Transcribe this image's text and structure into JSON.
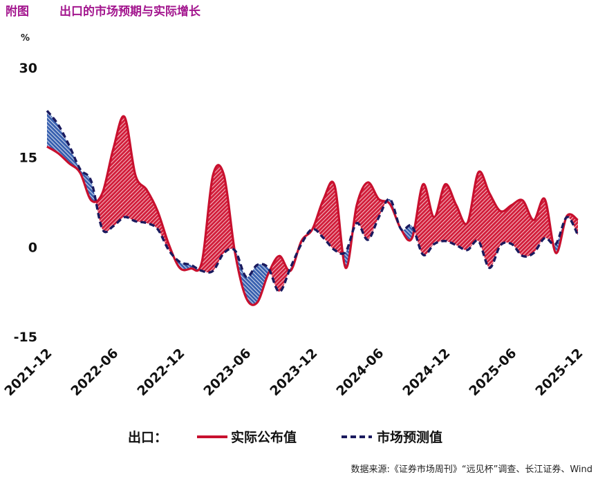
{
  "header": {
    "figure_label": "附图",
    "title": "出口的市场预期与实际增长"
  },
  "legend": {
    "prefix": "出口：",
    "actual": "实际公布值",
    "expected": "市场预测值"
  },
  "source": "数据来源:《证券市场周刊》“远见杯”调查、长江证券、Wind",
  "colors": {
    "actual": "#c8102e",
    "expected": "#1a1a5e",
    "hatch_blue": "#3a62b0",
    "title": "#a3168e"
  },
  "chart_data": {
    "type": "line",
    "title": "出口的市场预期与实际增长",
    "ylabel": "%",
    "ylim": [
      -15,
      30
    ],
    "yticks": [
      "30",
      "15",
      "0",
      "-15"
    ],
    "ytick_values": [
      30,
      15,
      0,
      -15
    ],
    "xlabels": [
      "2021-12",
      "2022-06",
      "2022-12",
      "2023-06",
      "2023-12",
      "2024-06",
      "2024-12",
      "2025-06",
      "2025-12"
    ],
    "x_start": "2021-12",
    "x_end": "2025-12",
    "frequency": "monthly",
    "grid": false,
    "legend_position": "bottom",
    "fill_between": true,
    "series": [
      {
        "name": "实际公布值",
        "style": "solid",
        "values": [
          16.8,
          15.7,
          14.0,
          12.4,
          7.8,
          9.0,
          16.5,
          21.8,
          12.0,
          9.6,
          6.0,
          0.5,
          -3.5,
          -3.6,
          -2.5,
          12.0,
          12.0,
          -1.0,
          -8.5,
          -9.3,
          -4.5,
          -1.5,
          -4.0,
          1.0,
          3.0,
          8.0,
          10.3,
          -3.5,
          7.0,
          10.8,
          8.0,
          7.2,
          3.0,
          1.5,
          10.5,
          5.0,
          10.5,
          7.0,
          4.0,
          12.5,
          9.0,
          6.0,
          7.0,
          7.8,
          4.5,
          8.0,
          -1.0,
          5.2,
          4.5
        ]
      },
      {
        "name": "市场预测值",
        "style": "dashed",
        "values": [
          22.8,
          20.5,
          17.0,
          13.0,
          11.0,
          3.0,
          3.5,
          5.0,
          4.3,
          4.0,
          3.0,
          -0.5,
          -2.5,
          -3.0,
          -4.0,
          -4.0,
          -1.0,
          -0.6,
          -5.0,
          -3.0,
          -3.5,
          -7.5,
          -3.5,
          0.5,
          3.0,
          1.5,
          -0.5,
          -0.8,
          4.0,
          1.2,
          5.0,
          8.0,
          3.0,
          3.5,
          -1.3,
          0.5,
          1.0,
          0.3,
          -0.5,
          1.0,
          -3.5,
          0.3,
          0.5,
          -1.5,
          -1.0,
          1.5,
          0.5,
          5.0,
          2.0
        ]
      }
    ]
  }
}
